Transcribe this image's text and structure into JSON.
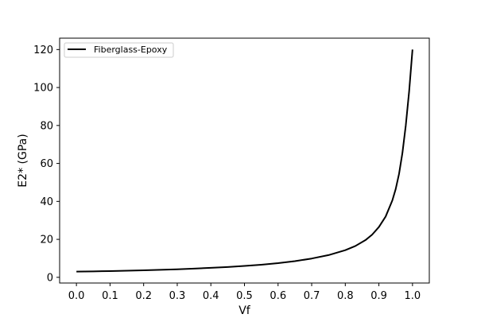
{
  "chart_data": {
    "type": "line",
    "title": "",
    "xlabel": "Vf",
    "ylabel": "E2* (GPa)",
    "xlim": [
      -0.05,
      1.05
    ],
    "ylim": [
      -3,
      126
    ],
    "xticks": [
      0.0,
      0.1,
      0.2,
      0.3,
      0.4,
      0.5,
      0.6,
      0.7,
      0.8,
      0.9,
      1.0
    ],
    "xtick_labels": [
      "0.0",
      "0.1",
      "0.2",
      "0.3",
      "0.4",
      "0.5",
      "0.6",
      "0.7",
      "0.8",
      "0.9",
      "1.0"
    ],
    "yticks": [
      0,
      20,
      40,
      60,
      80,
      100,
      120
    ],
    "ytick_labels": [
      "0",
      "20",
      "40",
      "60",
      "80",
      "100",
      "120"
    ],
    "grid": false,
    "legend_position": "top-left",
    "series": [
      {
        "name": "Fiberglass-Epoxy",
        "color": "#000000",
        "x": [
          0.0,
          0.05,
          0.1,
          0.15,
          0.2,
          0.25,
          0.3,
          0.35,
          0.4,
          0.45,
          0.5,
          0.55,
          0.6,
          0.65,
          0.7,
          0.75,
          0.8,
          0.83,
          0.86,
          0.88,
          0.9,
          0.92,
          0.94,
          0.95,
          0.96,
          0.97,
          0.98,
          0.99,
          1.0
        ],
        "y": [
          3.0,
          3.15,
          3.3,
          3.5,
          3.7,
          3.95,
          4.25,
          4.6,
          5.0,
          5.45,
          6.0,
          6.65,
          7.45,
          8.5,
          9.9,
          11.7,
          14.3,
          16.5,
          19.6,
          22.5,
          26.5,
          32.0,
          40.5,
          46.5,
          54.5,
          65.5,
          80.0,
          98.0,
          120.0
        ]
      }
    ]
  }
}
